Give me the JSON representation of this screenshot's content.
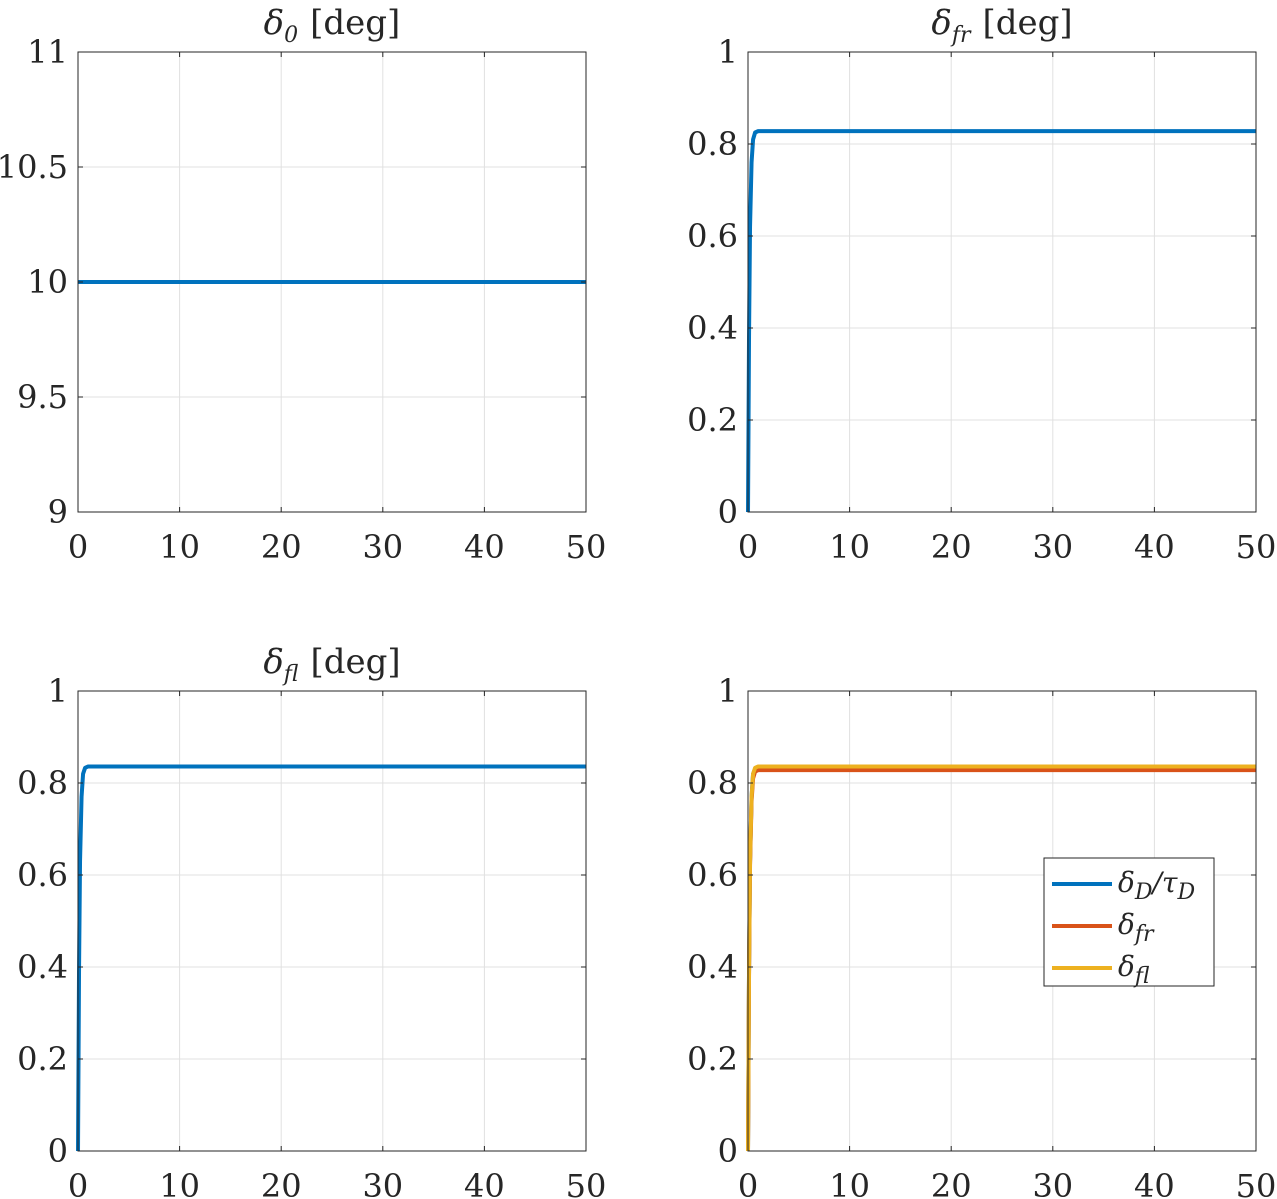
{
  "chart_data": [
    {
      "type": "line",
      "title_symbol": "δ",
      "title_sub": "0",
      "title_unit": "[deg]",
      "xlim": [
        0,
        50
      ],
      "ylim": [
        9,
        11
      ],
      "xticks": [
        0,
        10,
        20,
        30,
        40,
        50
      ],
      "yticks": [
        9,
        9.5,
        10,
        10.5,
        11
      ],
      "xtick_labels": [
        "0",
        "10",
        "20",
        "30",
        "40",
        "50"
      ],
      "ytick_labels": [
        "9",
        "9.5",
        "10",
        "10.5",
        "11"
      ],
      "grid": true,
      "series": [
        {
          "color": "#0072bd",
          "x": [
            0,
            50
          ],
          "y": [
            10,
            10
          ]
        }
      ]
    },
    {
      "type": "line",
      "title_symbol": "δ",
      "title_sub": "fr",
      "title_unit": "[deg]",
      "xlim": [
        0,
        50
      ],
      "ylim": [
        0,
        1
      ],
      "xticks": [
        0,
        10,
        20,
        30,
        40,
        50
      ],
      "yticks": [
        0,
        0.2,
        0.4,
        0.6,
        0.8,
        1
      ],
      "xtick_labels": [
        "0",
        "10",
        "20",
        "30",
        "40",
        "50"
      ],
      "ytick_labels": [
        "0",
        "0.2",
        "0.4",
        "0.6",
        "0.8",
        "1"
      ],
      "grid": true,
      "series": [
        {
          "color": "#0072bd",
          "x": [
            0,
            0.1,
            0.2,
            0.35,
            0.5,
            0.7,
            1.0,
            50
          ],
          "y": [
            0,
            0.38,
            0.62,
            0.76,
            0.81,
            0.825,
            0.828,
            0.828
          ]
        }
      ]
    },
    {
      "type": "line",
      "title_symbol": "δ",
      "title_sub": "fl",
      "title_unit": "[deg]",
      "xlim": [
        0,
        50
      ],
      "ylim": [
        0,
        1
      ],
      "xticks": [
        0,
        10,
        20,
        30,
        40,
        50
      ],
      "yticks": [
        0,
        0.2,
        0.4,
        0.6,
        0.8,
        1
      ],
      "xtick_labels": [
        "0",
        "10",
        "20",
        "30",
        "40",
        "50"
      ],
      "ytick_labels": [
        "0",
        "0.2",
        "0.4",
        "0.6",
        "0.8",
        "1"
      ],
      "grid": true,
      "series": [
        {
          "color": "#0072bd",
          "x": [
            0,
            0.1,
            0.2,
            0.35,
            0.5,
            0.7,
            1.0,
            50
          ],
          "y": [
            0,
            0.39,
            0.63,
            0.77,
            0.82,
            0.833,
            0.836,
            0.836
          ]
        }
      ]
    },
    {
      "type": "line",
      "xlim": [
        0,
        50
      ],
      "ylim": [
        0,
        1
      ],
      "xticks": [
        0,
        10,
        20,
        30,
        40,
        50
      ],
      "yticks": [
        0,
        0.2,
        0.4,
        0.6,
        0.8,
        1
      ],
      "xtick_labels": [
        "0",
        "10",
        "20",
        "30",
        "40",
        "50"
      ],
      "ytick_labels": [
        "0",
        "0.2",
        "0.4",
        "0.6",
        "0.8",
        "1"
      ],
      "grid": true,
      "legend": "right",
      "series": [
        {
          "name_symbol": "δ",
          "name_sub": "D",
          "name_mid": "/τ",
          "name_sub2": "D",
          "color": "#0072bd",
          "x": [
            0,
            0.1,
            0.2,
            0.35,
            0.5,
            0.7,
            1.0,
            50
          ],
          "y": [
            0,
            0.39,
            0.63,
            0.77,
            0.82,
            0.83,
            0.832,
            0.832
          ]
        },
        {
          "name_symbol": "δ",
          "name_sub": "fr",
          "color": "#d95319",
          "x": [
            0,
            0.1,
            0.2,
            0.35,
            0.5,
            0.7,
            1.0,
            50
          ],
          "y": [
            0,
            0.38,
            0.62,
            0.76,
            0.81,
            0.825,
            0.828,
            0.828
          ]
        },
        {
          "name_symbol": "δ",
          "name_sub": "fl",
          "color": "#edb120",
          "x": [
            0,
            0.1,
            0.2,
            0.35,
            0.5,
            0.7,
            1.0,
            50
          ],
          "y": [
            0,
            0.39,
            0.63,
            0.77,
            0.82,
            0.833,
            0.836,
            0.836
          ]
        }
      ]
    }
  ]
}
